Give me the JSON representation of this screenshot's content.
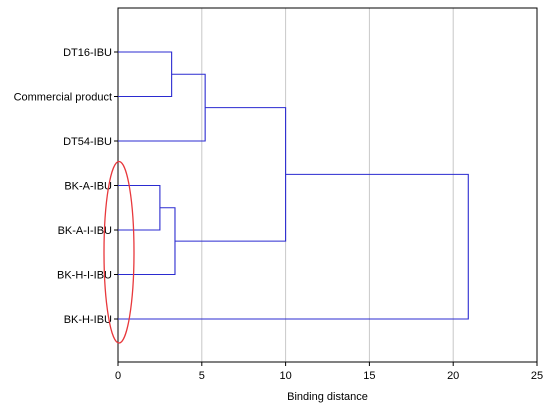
{
  "chart_data": {
    "type": "dendrogram",
    "orientation": "horizontal",
    "xlabel": "Binding distance",
    "xlim": [
      0,
      25
    ],
    "xticks": [
      0,
      5,
      10,
      15,
      20,
      25
    ],
    "grid": true,
    "leaves": [
      "DT16-IBU",
      "Commercial product",
      "DT54-IBU",
      "BK-A-IBU",
      "BK-A-I-IBU",
      "BK-H-I-IBU",
      "BK-H-IBU"
    ],
    "merges": [
      {
        "left": "DT16-IBU",
        "right": "Commercial product",
        "distance": 3.2
      },
      {
        "left": "BK-A-IBU",
        "right": "BK-A-I-IBU",
        "distance": 2.5
      },
      {
        "left": "BK-A-IBU+BK-A-I-IBU",
        "right": "BK-H-I-IBU",
        "distance": 3.4
      },
      {
        "left": "DT16-IBU+Commercial product",
        "right": "DT54-IBU",
        "distance": 5.2
      },
      {
        "left": "DT16-IBU+Commercial product+DT54-IBU",
        "right": "BK-A-IBU+BK-A-I-IBU+BK-H-I-IBU",
        "distance": 10.0
      },
      {
        "left": "all-above",
        "right": "BK-H-IBU",
        "distance": 20.9
      }
    ],
    "annotation": {
      "shape": "ellipse",
      "color": "#e8383c",
      "around_leaves": [
        "BK-A-IBU",
        "BK-A-I-IBU",
        "BK-H-I-IBU",
        "BK-H-IBU"
      ],
      "at_distance": 0
    }
  },
  "colors": {
    "lines": "#2b2bd0",
    "grid": "#c8c8c8",
    "frame": "#000000",
    "annotation": "#e8383c"
  }
}
